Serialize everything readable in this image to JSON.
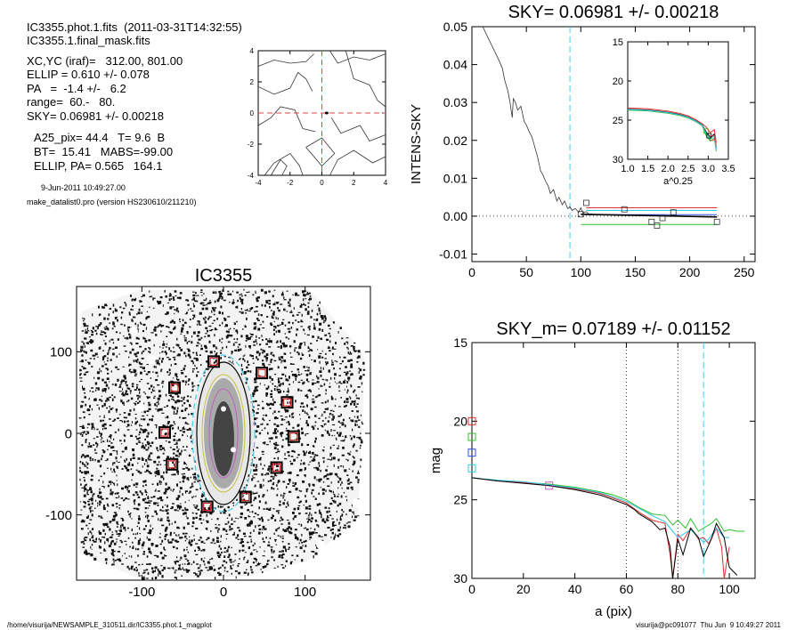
{
  "info": {
    "file_line": "IC3355.phot.1.fits  (2011-03-31T14:32:55)",
    "mask_line": "IC3355.1.final_mask.fits",
    "xcyc": "XC,YC (iraf)=   312.00, 801.00",
    "ellip": "ELLIP = 0.610 +/- 0.078",
    "pa": "PA   =  -1.4 +/-   6.2",
    "range": "range=  60.-   80.",
    "sky": "SKY= 0.06981 +/- 0.00218",
    "a25": "A25_pix= 44.4   T= 9.6  B",
    "bt": "BT=  15.41   MABS=-99.00",
    "ellip_pa": "ELLIP, PA= 0.565   164.1",
    "date": "9-Jun-2011 10:49:27.00",
    "program": "make_datalist0.pro (version HS230610/211210)"
  },
  "footer": {
    "left": "/home/visurija/NEWSAMPLE_310511.dir/IC3355.phot.1_magplot",
    "right": "visurija@pc091077  Thu Jun  9 10:49:27 2011"
  },
  "chart_data": [
    {
      "id": "center_contour",
      "type": "contour",
      "xlim": [
        -4,
        4
      ],
      "ylim": [
        -4,
        4
      ],
      "xticks": [
        -4,
        -2,
        0,
        2,
        4
      ],
      "yticks": [
        -4,
        -2,
        0,
        2,
        4
      ],
      "crosshair": {
        "x": 0,
        "y": 0,
        "color": "#dd4444"
      }
    },
    {
      "id": "sky_profile",
      "type": "line",
      "title": "SKY= 0.06981 +/- 0.00218",
      "ylabel": "INTENS-SKY",
      "xlim": [
        0,
        260
      ],
      "ylim": [
        -0.012,
        0.05
      ],
      "xticks": [
        0,
        50,
        100,
        150,
        200,
        250
      ],
      "yticks": [
        -0.01,
        0.0,
        0.01,
        0.02,
        0.03,
        0.04,
        0.05
      ],
      "ytick_labels": [
        "-0.01",
        "0.00",
        "0.01",
        "0.02",
        "0.03",
        "0.04",
        "0.05"
      ],
      "vline_cyan": 90,
      "profile": {
        "x": [
          10,
          15,
          20,
          25,
          28,
          30,
          33,
          35,
          37,
          38,
          40,
          42,
          45,
          48,
          50,
          53,
          55,
          58,
          60,
          63,
          65,
          68,
          70,
          72,
          75,
          78,
          80,
          83,
          85,
          88,
          90,
          92,
          95,
          98,
          100,
          102,
          105,
          108,
          110
        ],
        "y": [
          0.05,
          0.047,
          0.044,
          0.041,
          0.039,
          0.036,
          0.033,
          0.03,
          0.026,
          0.031,
          0.03,
          0.028,
          0.029,
          0.025,
          0.024,
          0.022,
          0.021,
          0.018,
          0.016,
          0.012,
          0.011,
          0.009,
          0.008,
          0.006,
          0.007,
          0.004,
          0.005,
          0.003,
          0.004,
          0.002,
          0.0025,
          0.0015,
          0.002,
          0.001,
          0.0022,
          0.0008,
          0.0012,
          0.0004,
          0.0006
        ]
      },
      "tail": {
        "x": [
          100,
          225
        ],
        "y": [
          0.0005,
          -0.0002
        ]
      },
      "hlines": [
        {
          "name": "red",
          "y": 0.0022,
          "x0": 105,
          "x1": 225,
          "color": "#e03030"
        },
        {
          "name": "cyan",
          "y": 0.0015,
          "x0": 105,
          "x1": 225,
          "color": "#30c8e8"
        },
        {
          "name": "blue",
          "y": 0.0004,
          "x0": 105,
          "x1": 225,
          "color": "#3050e0"
        },
        {
          "name": "green",
          "y": -0.0022,
          "x0": 100,
          "x1": 225,
          "color": "#30c030"
        }
      ],
      "points": {
        "x": [
          100,
          105,
          140,
          165,
          170,
          175,
          185,
          225
        ],
        "y": [
          0.0005,
          0.0035,
          0.0018,
          -0.0015,
          -0.0025,
          -0.0005,
          0.001,
          -0.0015
        ]
      },
      "inset": {
        "xlabel": "a^0.25",
        "xlim": [
          1.0,
          3.5
        ],
        "ylim": [
          15,
          30
        ],
        "xticks": [
          1.0,
          1.5,
          2.0,
          2.5,
          3.0,
          3.5
        ],
        "xtick_labels": [
          "1.0",
          "1.5",
          "2.0",
          "2.5",
          "3.0",
          "3.5"
        ],
        "yticks": [
          15,
          20,
          25,
          30
        ],
        "yreversed": true,
        "x": [
          1.0,
          1.5,
          2.0,
          2.3,
          2.5,
          2.7,
          2.85,
          2.95,
          3.05,
          3.15,
          3.2
        ],
        "y": [
          23.6,
          23.7,
          24.0,
          24.3,
          24.6,
          25.1,
          25.6,
          26.5,
          27.2,
          26.8,
          28.5
        ]
      }
    },
    {
      "id": "galaxy_image",
      "type": "image",
      "title": "IC3355",
      "xlim": [
        -180,
        180
      ],
      "ylim": [
        -180,
        180
      ],
      "xticks": [
        -100,
        0,
        100
      ],
      "yticks": [
        -100,
        0,
        100
      ],
      "boxes": {
        "x": [
          -12,
          47,
          -60,
          78,
          -72,
          86,
          -63,
          65,
          -20,
          27
        ],
        "y": [
          88,
          74,
          56,
          38,
          1,
          -4,
          -38,
          -42,
          -90,
          -78
        ]
      }
    },
    {
      "id": "mag_profile",
      "type": "line",
      "title": "SKY_m=  0.07189 +/- 0.01152",
      "xlabel": "a (pix)",
      "ylabel": "mag",
      "xlim": [
        0,
        110
      ],
      "ylim": [
        15,
        30
      ],
      "yreversed": true,
      "xticks": [
        0,
        20,
        40,
        60,
        80,
        100
      ],
      "yticks": [
        15,
        20,
        25,
        30
      ],
      "vlines_dotted": [
        60,
        80
      ],
      "vline_cyan": 90,
      "series": [
        {
          "name": "green",
          "color": "#30c030",
          "x": [
            0,
            10,
            20,
            30,
            40,
            50,
            55,
            60,
            65,
            70,
            75,
            78,
            80,
            83,
            85,
            88,
            90,
            93,
            95,
            98,
            100,
            103,
            106
          ],
          "y": [
            23.6,
            23.8,
            23.9,
            24.0,
            24.2,
            24.5,
            24.7,
            25.0,
            25.5,
            25.9,
            26.0,
            26.6,
            26.3,
            26.8,
            26.2,
            27.0,
            26.8,
            26.5,
            26.2,
            27.0,
            26.9,
            27.0,
            27.0
          ]
        },
        {
          "name": "red",
          "color": "#e03030",
          "x": [
            0,
            10,
            20,
            30,
            40,
            50,
            55,
            60,
            65,
            70,
            75,
            77,
            78,
            80,
            82,
            85,
            88,
            90,
            92,
            95,
            97,
            98,
            100
          ],
          "y": [
            23.6,
            23.8,
            23.9,
            24.1,
            24.3,
            24.6,
            24.9,
            25.2,
            25.8,
            26.3,
            26.5,
            28.5,
            30,
            27.2,
            27.6,
            26.8,
            27.5,
            27.4,
            27.8,
            26.8,
            28.0,
            30,
            28.0
          ]
        },
        {
          "name": "cyan",
          "color": "#30c8e8",
          "x": [
            0,
            10,
            20,
            30,
            40,
            50,
            60,
            70,
            75,
            78,
            80,
            83,
            85,
            88,
            90,
            92,
            95,
            98,
            100
          ],
          "y": [
            23.6,
            23.75,
            23.85,
            24.05,
            24.25,
            24.55,
            25.1,
            26.0,
            26.4,
            27.0,
            27.4,
            27.1,
            26.9,
            27.4,
            27.7,
            27.5,
            26.8,
            27.4,
            27.4
          ]
        },
        {
          "name": "black",
          "color": "#000000",
          "x": [
            0,
            10,
            20,
            30,
            40,
            50,
            55,
            60,
            63,
            65,
            70,
            73,
            75,
            77,
            78,
            80,
            82,
            85,
            88,
            90,
            93,
            95,
            98,
            100,
            103
          ],
          "y": [
            23.6,
            23.8,
            23.95,
            24.1,
            24.35,
            24.7,
            25.0,
            25.3,
            25.6,
            25.9,
            26.4,
            26.9,
            26.8,
            28.0,
            30,
            27.5,
            28.5,
            26.8,
            27.4,
            28.6,
            27.5,
            26.5,
            27.4,
            29.3,
            29.8
          ]
        }
      ],
      "markers": [
        {
          "x": 0,
          "y": 20.0,
          "color": "#e03030"
        },
        {
          "x": 0,
          "y": 21.0,
          "color": "#30c030"
        },
        {
          "x": 0,
          "y": 22.0,
          "color": "#3050e0"
        },
        {
          "x": 0,
          "y": 23.0,
          "color": "#30c8e8"
        },
        {
          "x": 30,
          "y": 24.1,
          "color": "#c060c0"
        }
      ]
    }
  ]
}
